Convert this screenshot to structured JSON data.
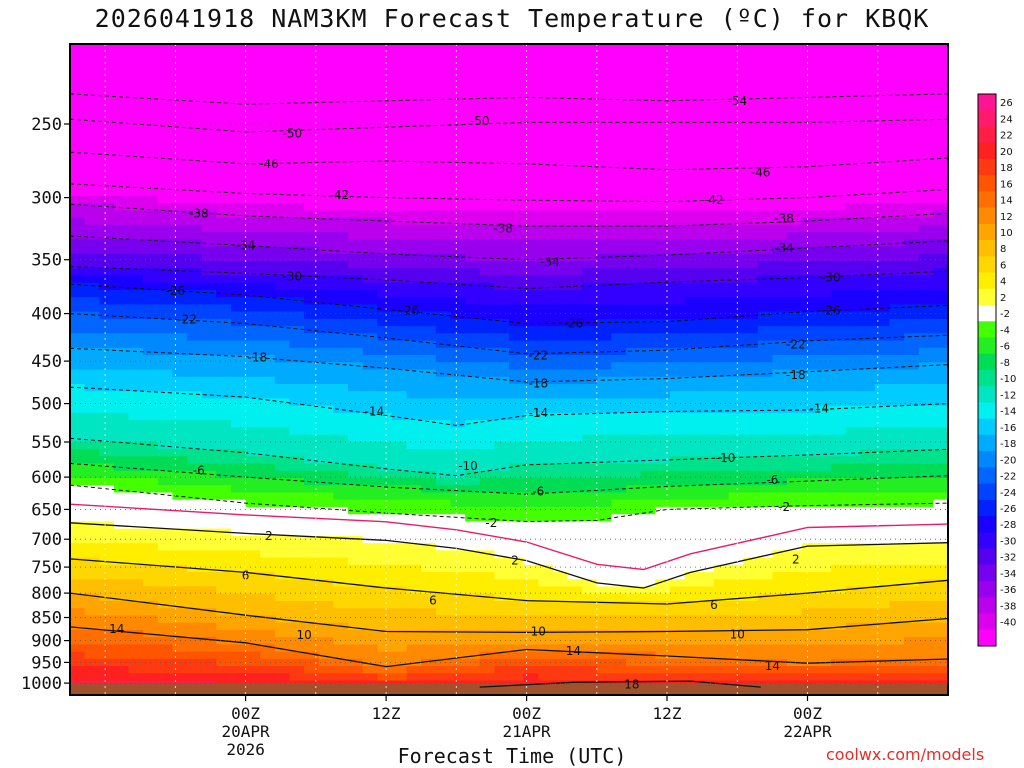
{
  "chart_data": {
    "type": "heatmap",
    "title": "2026041918 NAM3KM Forecast Temperature (ºC) for KBQK",
    "xlabel": "Forecast Time (UTC)",
    "ylabel": "",
    "watermark": "coolwx.com/models",
    "y_axis": {
      "unit": "hPa",
      "scale": "log",
      "range": [
        1030,
        205
      ],
      "ticks": [
        250,
        300,
        350,
        400,
        450,
        500,
        550,
        600,
        650,
        700,
        750,
        800,
        850,
        900,
        950,
        1000
      ]
    },
    "x_axis": {
      "unit": "forecast hour",
      "range": [
        -9,
        66
      ],
      "ticks": [
        {
          "hour": 6,
          "lines": [
            "00Z",
            "20APR",
            "2026"
          ]
        },
        {
          "hour": 18,
          "lines": [
            "12Z"
          ]
        },
        {
          "hour": 30,
          "lines": [
            "00Z",
            "21APR"
          ]
        },
        {
          "hour": 42,
          "lines": [
            "12Z"
          ]
        },
        {
          "hour": 54,
          "lines": [
            "00Z",
            "22APR"
          ]
        }
      ],
      "gridlines_every_hours": 6
    },
    "colorbar": {
      "labels": [
        "26",
        "24",
        "22",
        "20",
        "18",
        "16",
        "14",
        "12",
        "10",
        "8",
        "6",
        "4",
        "2",
        "-2",
        "-4",
        "-6",
        "-8",
        "-10",
        "-12",
        "-14",
        "-16",
        "-18",
        "-20",
        "-22",
        "-24",
        "-26",
        "-28",
        "-30",
        "-32",
        "-34",
        "-36",
        "-38",
        "-40"
      ],
      "colors": [
        "#ff1493",
        "#ff1a6e",
        "#ff1e46",
        "#ff2020",
        "#ff3a10",
        "#ff5500",
        "#ff6e00",
        "#ff8a00",
        "#ffa500",
        "#ffbf00",
        "#ffd700",
        "#ffee00",
        "#ffff33",
        "#ffffff",
        "#44ff00",
        "#22ee22",
        "#00dd55",
        "#00e18c",
        "#00e6c3",
        "#00f0f0",
        "#00ccff",
        "#00aaff",
        "#0088ff",
        "#0066ff",
        "#0044ff",
        "#0022ff",
        "#1a00ff",
        "#3300ff",
        "#5500ee",
        "#7700ee",
        "#9900ee",
        "#bb00ee",
        "#dd00ee",
        "#ff00ff"
      ]
    },
    "contours": [
      {
        "label": "-54",
        "hour": 48,
        "pressure": 236,
        "series": [
          {
            "hour": -9,
            "pressure": 232
          },
          {
            "hour": 6,
            "pressure": 238
          },
          {
            "hour": 18,
            "pressure": 236
          },
          {
            "hour": 30,
            "pressure": 234
          },
          {
            "hour": 42,
            "pressure": 236
          },
          {
            "hour": 54,
            "pressure": 234
          },
          {
            "hour": 66,
            "pressure": 232
          }
        ]
      },
      {
        "label": "-50",
        "hour": 10,
        "pressure": 256,
        "series": [
          {
            "hour": -9,
            "pressure": 247
          },
          {
            "hour": 6,
            "pressure": 255
          },
          {
            "hour": 18,
            "pressure": 252
          },
          {
            "hour": 30,
            "pressure": 249
          },
          {
            "hour": 42,
            "pressure": 249
          },
          {
            "hour": 54,
            "pressure": 249
          },
          {
            "hour": 66,
            "pressure": 247
          }
        ]
      },
      {
        "label": "-50",
        "hour": 26,
        "pressure": 248,
        "series": []
      },
      {
        "label": "-46",
        "hour": 8,
        "pressure": 276,
        "series": [
          {
            "hour": -9,
            "pressure": 268
          },
          {
            "hour": 6,
            "pressure": 276
          },
          {
            "hour": 18,
            "pressure": 274
          },
          {
            "hour": 30,
            "pressure": 276
          },
          {
            "hour": 42,
            "pressure": 280
          },
          {
            "hour": 54,
            "pressure": 278
          },
          {
            "hour": 66,
            "pressure": 272
          }
        ]
      },
      {
        "label": "-46",
        "hour": 50,
        "pressure": 282,
        "series": []
      },
      {
        "label": "-42",
        "hour": 14,
        "pressure": 298,
        "series": [
          {
            "hour": -9,
            "pressure": 290
          },
          {
            "hour": 6,
            "pressure": 297
          },
          {
            "hour": 18,
            "pressure": 300
          },
          {
            "hour": 30,
            "pressure": 302
          },
          {
            "hour": 42,
            "pressure": 303
          },
          {
            "hour": 54,
            "pressure": 300
          },
          {
            "hour": 66,
            "pressure": 294
          }
        ]
      },
      {
        "label": "-42",
        "hour": 46,
        "pressure": 302,
        "series": []
      },
      {
        "label": "-38",
        "hour": 2,
        "pressure": 312,
        "series": [
          {
            "hour": -9,
            "pressure": 305
          },
          {
            "hour": 6,
            "pressure": 314
          },
          {
            "hour": 18,
            "pressure": 318
          },
          {
            "hour": 30,
            "pressure": 322
          },
          {
            "hour": 42,
            "pressure": 322
          },
          {
            "hour": 54,
            "pressure": 318
          },
          {
            "hour": 66,
            "pressure": 312
          }
        ]
      },
      {
        "label": "-38",
        "hour": 28,
        "pressure": 324,
        "series": []
      },
      {
        "label": "-38",
        "hour": 52,
        "pressure": 316,
        "series": []
      },
      {
        "label": "-34",
        "hour": 6,
        "pressure": 338,
        "series": [
          {
            "hour": -9,
            "pressure": 330
          },
          {
            "hour": 6,
            "pressure": 338
          },
          {
            "hour": 18,
            "pressure": 345
          },
          {
            "hour": 30,
            "pressure": 350
          },
          {
            "hour": 42,
            "pressure": 346
          },
          {
            "hour": 54,
            "pressure": 340
          },
          {
            "hour": 66,
            "pressure": 334
          }
        ]
      },
      {
        "label": "-34",
        "hour": 32,
        "pressure": 352,
        "series": []
      },
      {
        "label": "-34",
        "hour": 52,
        "pressure": 340,
        "series": []
      },
      {
        "label": "-30",
        "hour": 10,
        "pressure": 365,
        "series": [
          {
            "hour": -9,
            "pressure": 356
          },
          {
            "hour": 6,
            "pressure": 362
          },
          {
            "hour": 18,
            "pressure": 368
          },
          {
            "hour": 30,
            "pressure": 376
          },
          {
            "hour": 42,
            "pressure": 370
          },
          {
            "hour": 54,
            "pressure": 366
          },
          {
            "hour": 66,
            "pressure": 360
          }
        ]
      },
      {
        "label": "-30",
        "hour": 56,
        "pressure": 366,
        "series": []
      },
      {
        "label": "-26",
        "hour": 0,
        "pressure": 378,
        "series": [
          {
            "hour": -9,
            "pressure": 372
          },
          {
            "hour": 6,
            "pressure": 382
          },
          {
            "hour": 18,
            "pressure": 396
          },
          {
            "hour": 30,
            "pressure": 410
          },
          {
            "hour": 42,
            "pressure": 408
          },
          {
            "hour": 54,
            "pressure": 398
          },
          {
            "hour": 66,
            "pressure": 392
          }
        ]
      },
      {
        "label": "-26",
        "hour": 20,
        "pressure": 397,
        "series": []
      },
      {
        "label": "-26",
        "hour": 34,
        "pressure": 410,
        "series": []
      },
      {
        "label": "-26",
        "hour": 56,
        "pressure": 397,
        "series": []
      },
      {
        "label": "-22",
        "hour": 1,
        "pressure": 406,
        "series": [
          {
            "hour": -9,
            "pressure": 400
          },
          {
            "hour": 6,
            "pressure": 410
          },
          {
            "hour": 18,
            "pressure": 425
          },
          {
            "hour": 30,
            "pressure": 442
          },
          {
            "hour": 42,
            "pressure": 438
          },
          {
            "hour": 54,
            "pressure": 428
          },
          {
            "hour": 66,
            "pressure": 422
          }
        ]
      },
      {
        "label": "-22",
        "hour": 31,
        "pressure": 444,
        "series": []
      },
      {
        "label": "-22",
        "hour": 53,
        "pressure": 432,
        "series": []
      },
      {
        "label": "-18",
        "hour": 7,
        "pressure": 446,
        "series": [
          {
            "hour": -9,
            "pressure": 436
          },
          {
            "hour": 6,
            "pressure": 445
          },
          {
            "hour": 18,
            "pressure": 458
          },
          {
            "hour": 30,
            "pressure": 474
          },
          {
            "hour": 42,
            "pressure": 470
          },
          {
            "hour": 54,
            "pressure": 462
          },
          {
            "hour": 66,
            "pressure": 454
          }
        ]
      },
      {
        "label": "-18",
        "hour": 31,
        "pressure": 476,
        "series": []
      },
      {
        "label": "-18",
        "hour": 53,
        "pressure": 466,
        "series": []
      },
      {
        "label": "-14",
        "hour": 17,
        "pressure": 510,
        "series": [
          {
            "hour": -9,
            "pressure": 480
          },
          {
            "hour": 6,
            "pressure": 492
          },
          {
            "hour": 18,
            "pressure": 515
          },
          {
            "hour": 24,
            "pressure": 528
          },
          {
            "hour": 30,
            "pressure": 515
          },
          {
            "hour": 42,
            "pressure": 510
          },
          {
            "hour": 54,
            "pressure": 508
          },
          {
            "hour": 66,
            "pressure": 500
          }
        ]
      },
      {
        "label": "-14",
        "hour": 31,
        "pressure": 512,
        "series": []
      },
      {
        "label": "-14",
        "hour": 55,
        "pressure": 506,
        "series": []
      },
      {
        "label": "-10",
        "hour": 25,
        "pressure": 584,
        "series": [
          {
            "hour": -9,
            "pressure": 545
          },
          {
            "hour": 6,
            "pressure": 565
          },
          {
            "hour": 18,
            "pressure": 588
          },
          {
            "hour": 24,
            "pressure": 598
          },
          {
            "hour": 30,
            "pressure": 582
          },
          {
            "hour": 42,
            "pressure": 575
          },
          {
            "hour": 54,
            "pressure": 568
          },
          {
            "hour": 66,
            "pressure": 560
          }
        ]
      },
      {
        "label": "-10",
        "hour": 47,
        "pressure": 572,
        "series": []
      },
      {
        "label": "-6",
        "hour": 2,
        "pressure": 590,
        "series": [
          {
            "hour": -9,
            "pressure": 580
          },
          {
            "hour": 6,
            "pressure": 600
          },
          {
            "hour": 18,
            "pressure": 615
          },
          {
            "hour": 30,
            "pressure": 626
          },
          {
            "hour": 42,
            "pressure": 614
          },
          {
            "hour": 54,
            "pressure": 606
          },
          {
            "hour": 66,
            "pressure": 598
          }
        ]
      },
      {
        "label": "-6",
        "hour": 31,
        "pressure": 622,
        "series": []
      },
      {
        "label": "-6",
        "hour": 51,
        "pressure": 604,
        "series": []
      },
      {
        "label": "-2",
        "hour": 27,
        "pressure": 672,
        "series": [
          {
            "hour": -9,
            "pressure": 612
          },
          {
            "hour": 6,
            "pressure": 640
          },
          {
            "hour": 18,
            "pressure": 656
          },
          {
            "hour": 30,
            "pressure": 670
          },
          {
            "hour": 36,
            "pressure": 668
          },
          {
            "hour": 42,
            "pressure": 650
          },
          {
            "hour": 54,
            "pressure": 644
          },
          {
            "hour": 66,
            "pressure": 640
          }
        ]
      },
      {
        "label": "-2",
        "hour": 52,
        "pressure": 646,
        "series": []
      },
      {
        "label": "2",
        "hour": 8,
        "pressure": 694,
        "series": [
          {
            "hour": -9,
            "pressure": 672
          },
          {
            "hour": 6,
            "pressure": 690
          },
          {
            "hour": 18,
            "pressure": 702
          },
          {
            "hour": 24,
            "pressure": 716
          },
          {
            "hour": 30,
            "pressure": 738
          },
          {
            "hour": 36,
            "pressure": 780
          },
          {
            "hour": 40,
            "pressure": 790
          },
          {
            "hour": 44,
            "pressure": 760
          },
          {
            "hour": 54,
            "pressure": 712
          },
          {
            "hour": 66,
            "pressure": 706
          }
        ]
      },
      {
        "label": "2",
        "hour": 29,
        "pressure": 738,
        "series": []
      },
      {
        "label": "2",
        "hour": 53,
        "pressure": 736,
        "series": []
      },
      {
        "label": "6",
        "hour": 6,
        "pressure": 766,
        "series": [
          {
            "hour": -9,
            "pressure": 735
          },
          {
            "hour": 6,
            "pressure": 760
          },
          {
            "hour": 18,
            "pressure": 790
          },
          {
            "hour": 30,
            "pressure": 815
          },
          {
            "hour": 42,
            "pressure": 822
          },
          {
            "hour": 54,
            "pressure": 800
          },
          {
            "hour": 66,
            "pressure": 775
          }
        ]
      },
      {
        "label": "6",
        "hour": 22,
        "pressure": 815,
        "series": []
      },
      {
        "label": "6",
        "hour": 46,
        "pressure": 824,
        "series": []
      },
      {
        "label": "10",
        "hour": 11,
        "pressure": 888,
        "series": [
          {
            "hour": -9,
            "pressure": 800
          },
          {
            "hour": 6,
            "pressure": 845
          },
          {
            "hour": 18,
            "pressure": 880
          },
          {
            "hour": 30,
            "pressure": 882
          },
          {
            "hour": 42,
            "pressure": 880
          },
          {
            "hour": 54,
            "pressure": 876
          },
          {
            "hour": 66,
            "pressure": 852
          }
        ]
      },
      {
        "label": "10",
        "hour": 31,
        "pressure": 880,
        "series": []
      },
      {
        "label": "10",
        "hour": 48,
        "pressure": 886,
        "series": []
      },
      {
        "label": "14",
        "hour": -5,
        "pressure": 874,
        "series": [
          {
            "hour": -9,
            "pressure": 870
          },
          {
            "hour": 6,
            "pressure": 905
          },
          {
            "hour": 18,
            "pressure": 960
          },
          {
            "hour": 30,
            "pressure": 920
          },
          {
            "hour": 42,
            "pressure": 935
          },
          {
            "hour": 54,
            "pressure": 952
          },
          {
            "hour": 66,
            "pressure": 942
          }
        ]
      },
      {
        "label": "14",
        "hour": 34,
        "pressure": 924,
        "series": []
      },
      {
        "label": "14",
        "hour": 51,
        "pressure": 958,
        "series": []
      },
      {
        "label": "18",
        "hour": 39,
        "pressure": 1004,
        "series": [
          {
            "hour": 26,
            "pressure": 1010
          },
          {
            "hour": 34,
            "pressure": 998
          },
          {
            "hour": 44,
            "pressure": 995
          },
          {
            "hour": 50,
            "pressure": 1010
          }
        ]
      }
    ]
  }
}
